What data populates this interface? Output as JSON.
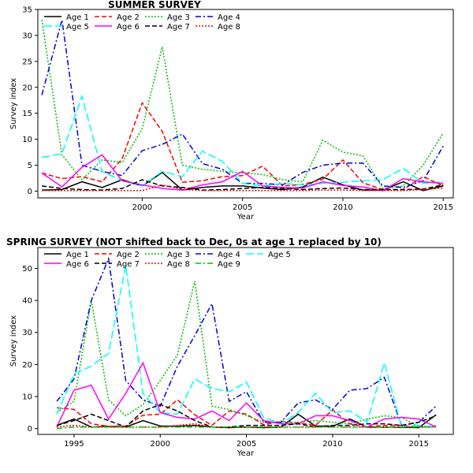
{
  "chart_data": [
    {
      "type": "line",
      "title": "SUMMER SURVEY",
      "xlabel": "Year",
      "ylabel": "Survey index",
      "xlim": [
        1994.8,
        2015.5
      ],
      "ylim": [
        -1.3,
        35
      ],
      "xticks": [
        2000,
        2005,
        2010,
        2015
      ],
      "yticks": [
        0,
        5,
        10,
        15,
        20,
        25,
        30,
        35
      ],
      "legend_placement": "top-left",
      "x": [
        1995,
        1996,
        1997,
        1998,
        1999,
        2000,
        2001,
        2002,
        2003,
        2004,
        2005,
        2006,
        2007,
        2008,
        2009,
        2010,
        2011,
        2012,
        2013,
        2014,
        2015
      ],
      "series": [
        {
          "name": "Age 1",
          "color": "#000000",
          "dash": "solid",
          "values": [
            0.2,
            0.3,
            1.8,
            0.7,
            2.2,
            1.0,
            3.6,
            0.2,
            0.7,
            1.0,
            1.0,
            0.6,
            0.3,
            0.8,
            2.7,
            1.2,
            0.2,
            0.2,
            1.8,
            0.1,
            1.0
          ]
        },
        {
          "name": "Age 2",
          "color": "#ff0000",
          "dash": "dashed",
          "values": [
            3.5,
            2.4,
            2.8,
            1.8,
            6.2,
            17.0,
            11.5,
            1.7,
            2.0,
            2.8,
            3.0,
            4.8,
            1.0,
            1.3,
            2.3,
            6.0,
            1.6,
            0.3,
            0.3,
            2.8,
            1.0
          ]
        },
        {
          "name": "Age 3",
          "color": "#00c000",
          "dash": "dotted",
          "values": [
            33.0,
            7.0,
            2.2,
            6.0,
            5.5,
            12.0,
            27.8,
            5.0,
            4.2,
            3.8,
            3.5,
            3.2,
            2.2,
            1.8,
            9.8,
            7.5,
            6.8,
            0.5,
            1.0,
            5.0,
            11.2
          ]
        },
        {
          "name": "Age 4",
          "color": "#0000dd",
          "dash": "dashdot",
          "values": [
            18.5,
            33.0,
            5.0,
            3.8,
            3.0,
            7.8,
            9.0,
            11.0,
            5.3,
            4.2,
            1.5,
            1.5,
            1.2,
            3.6,
            5.0,
            5.4,
            5.4,
            1.0,
            0.7,
            2.0,
            8.7
          ]
        },
        {
          "name": "Age 5",
          "color": "#00ffff",
          "dash": "longdash",
          "values": [
            6.5,
            7.2,
            18.3,
            3.8,
            2.0,
            1.0,
            3.8,
            2.8,
            7.7,
            5.7,
            1.5,
            1.0,
            1.5,
            1.2,
            1.5,
            1.7,
            2.0,
            2.2,
            4.4,
            1.5,
            1.8
          ]
        },
        {
          "name": "Age 6",
          "color": "#ff00ff",
          "dash": "solid",
          "values": [
            3.5,
            0.8,
            4.6,
            7.0,
            2.0,
            1.2,
            0.5,
            0.2,
            1.2,
            1.8,
            3.8,
            1.0,
            0.7,
            0.6,
            1.8,
            1.1,
            0.8,
            0.1,
            2.4,
            1.8,
            1.5
          ]
        },
        {
          "name": "Age 7",
          "color": "#000000",
          "dash": "dashed",
          "values": [
            1.0,
            0.5,
            0.3,
            0.2,
            0.5,
            2.2,
            1.0,
            0.7,
            0.2,
            0.3,
            0.5,
            0.7,
            0.5,
            0.3,
            0.5,
            0.6,
            0.3,
            0.3,
            0.3,
            0.4,
            1.2
          ]
        },
        {
          "name": "Age 8",
          "color": "#ff0000",
          "dash": "dotted",
          "values": [
            0.1,
            0.1,
            0.1,
            0.1,
            0.1,
            0.1,
            1.2,
            0.3,
            0.1,
            0.1,
            0.1,
            0.1,
            0.1,
            0.1,
            0.2,
            0.2,
            0.1,
            0.1,
            0.1,
            0.3,
            0.6
          ]
        }
      ]
    },
    {
      "type": "line",
      "title": "SPRING   SURVEY  (NOT shifted back to Dec, 0s at age 1 replaced by 10)",
      "xlabel": "Year",
      "ylabel": "Survey index",
      "xlim": [
        1992.9,
        2017.0
      ],
      "ylim": [
        -1.8,
        56.5
      ],
      "xticks": [
        1995,
        2000,
        2005,
        2010,
        2015
      ],
      "yticks": [
        0,
        10,
        20,
        30,
        40,
        50
      ],
      "legend_placement": "top-left",
      "x": [
        1994,
        1995,
        1996,
        1997,
        1998,
        1999,
        2000,
        2001,
        2002,
        2003,
        2004,
        2005,
        2006,
        2007,
        2008,
        2009,
        2010,
        2011,
        2012,
        2013,
        2014,
        2015,
        2016
      ],
      "series": [
        {
          "name": "Age 1",
          "color": "#000000",
          "dash": "solid",
          "values": [
            1.0,
            3.0,
            0.5,
            0.7,
            0.5,
            2.5,
            0.8,
            0.7,
            1.0,
            0.5,
            0.3,
            0.5,
            0.3,
            0.5,
            4.5,
            0.8,
            0.7,
            3.0,
            0.4,
            0.5,
            0.4,
            0.3,
            4.3
          ]
        },
        {
          "name": "Age 2",
          "color": "#ff0000",
          "dash": "dashed",
          "values": [
            6.5,
            6.0,
            1.5,
            0.7,
            0.8,
            4.2,
            4.5,
            9.0,
            4.3,
            1.0,
            5.5,
            4.5,
            1.2,
            2.3,
            1.8,
            1.0,
            5.8,
            1.5,
            0.5,
            1.0,
            1.0,
            0.5,
            0.8
          ]
        },
        {
          "name": "Age 3",
          "color": "#00c000",
          "dash": "dotted",
          "values": [
            5.0,
            8.5,
            40.0,
            9.0,
            4.0,
            7.5,
            15.0,
            23.0,
            46.0,
            7.0,
            6.0,
            4.0,
            2.0,
            2.0,
            2.0,
            2.5,
            2.0,
            1.5,
            3.0,
            4.0,
            3.5,
            0.5,
            0.5
          ]
        },
        {
          "name": "Age 4",
          "color": "#0000dd",
          "dash": "dashdot",
          "values": [
            8.5,
            15.5,
            40.0,
            53.0,
            15.0,
            9.0,
            7.0,
            19.5,
            29.0,
            39.0,
            8.5,
            11.5,
            2.0,
            2.0,
            8.0,
            9.0,
            6.0,
            12.0,
            12.5,
            16.0,
            1.0,
            2.0,
            7.0
          ]
        },
        {
          "name": "Age 5",
          "color": "#00ffff",
          "dash": "longdash",
          "values": [
            4.5,
            17.0,
            19.5,
            23.5,
            51.0,
            11.0,
            5.0,
            4.5,
            15.5,
            12.5,
            11.5,
            14.5,
            3.5,
            1.5,
            5.0,
            11.0,
            5.0,
            5.5,
            2.0,
            20.5,
            0.5,
            1.0,
            0.5
          ]
        },
        {
          "name": "Age 6",
          "color": "#ff00ff",
          "dash": "solid",
          "values": [
            0.5,
            12.0,
            13.5,
            3.0,
            11.0,
            20.5,
            5.0,
            3.5,
            3.0,
            5.5,
            2.5,
            8.0,
            2.5,
            1.5,
            1.5,
            4.0,
            4.0,
            2.5,
            0.5,
            3.0,
            3.5,
            3.0,
            0.5
          ]
        },
        {
          "name": "Age 7",
          "color": "#000000",
          "dash": "dashed",
          "values": [
            1.0,
            2.5,
            4.5,
            2.5,
            0.5,
            5.5,
            7.5,
            5.5,
            2.5,
            0.5,
            0.5,
            1.0,
            1.0,
            1.0,
            1.5,
            0.5,
            1.0,
            1.0,
            1.5,
            1.5,
            1.0,
            2.0,
            4.0
          ]
        },
        {
          "name": "Age 8",
          "color": "#ff0000",
          "dash": "dotted",
          "values": [
            0.5,
            1.0,
            0.5,
            0.5,
            0.5,
            0.5,
            0.5,
            1.0,
            1.5,
            0.5,
            0.5,
            0.5,
            0.5,
            0.5,
            0.5,
            0.5,
            0.5,
            0.5,
            0.5,
            0.5,
            0.5,
            0.5,
            0.5
          ]
        },
        {
          "name": "Age 9",
          "color": "#00c000",
          "dash": "dashdot",
          "values": [
            0.0,
            0.5,
            0.5,
            0.5,
            0.5,
            0.5,
            0.5,
            0.5,
            0.5,
            0.5,
            0.5,
            0.5,
            0.5,
            0.5,
            0.5,
            0.5,
            0.5,
            0.5,
            0.5,
            0.5,
            0.5,
            0.5,
            0.5
          ]
        }
      ]
    }
  ]
}
